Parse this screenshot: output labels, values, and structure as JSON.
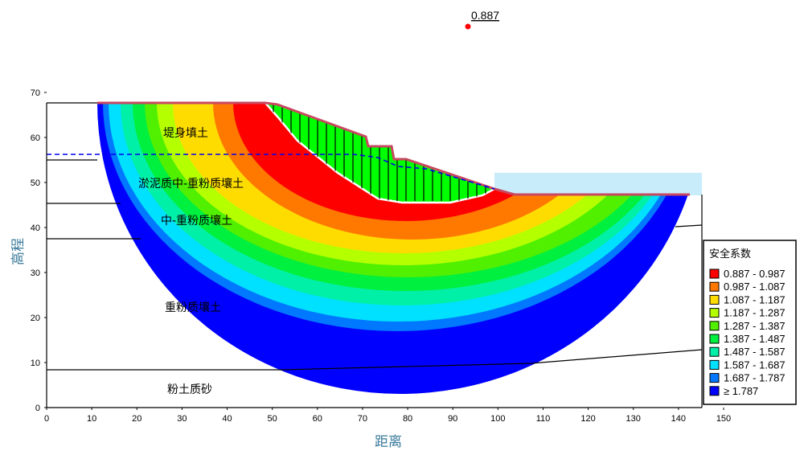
{
  "chart_data": {
    "type": "heatmap",
    "title": "0.887",
    "xlabel": "距离",
    "ylabel": "高程",
    "xlim": [
      0,
      150
    ],
    "ylim": [
      0,
      70
    ],
    "xticks": [
      0,
      10,
      20,
      30,
      40,
      50,
      60,
      70,
      80,
      90,
      100,
      110,
      120,
      130,
      140,
      150
    ],
    "yticks": [
      0,
      10,
      20,
      30,
      40,
      50,
      60,
      70
    ],
    "min_factor_of_safety": 0.887,
    "legend": {
      "title": "安全系数",
      "placement": "right",
      "entries": [
        {
          "label": "0.887 - 0.987",
          "color": "#ff0000"
        },
        {
          "label": "0.987 - 1.087",
          "color": "#ff7800"
        },
        {
          "label": "1.087 - 1.187",
          "color": "#ffdc00"
        },
        {
          "label": "1.187 - 1.287",
          "color": "#b4ff00"
        },
        {
          "label": "1.287 - 1.387",
          "color": "#50f000"
        },
        {
          "label": "1.387 - 1.487",
          "color": "#00f040"
        },
        {
          "label": "1.487 - 1.587",
          "color": "#00f0a8"
        },
        {
          "label": "1.587 - 1.687",
          "color": "#00e0ff"
        },
        {
          "label": "1.687 - 1.787",
          "color": "#0078ff"
        },
        {
          "label": "≥ 1.787",
          "color": "#0000ff"
        }
      ]
    },
    "layers": [
      "堤身填土",
      "淤泥质中-重粉质壤土",
      "中-重粉质壤土",
      "重粉质壤土",
      "粉土质砂"
    ]
  }
}
